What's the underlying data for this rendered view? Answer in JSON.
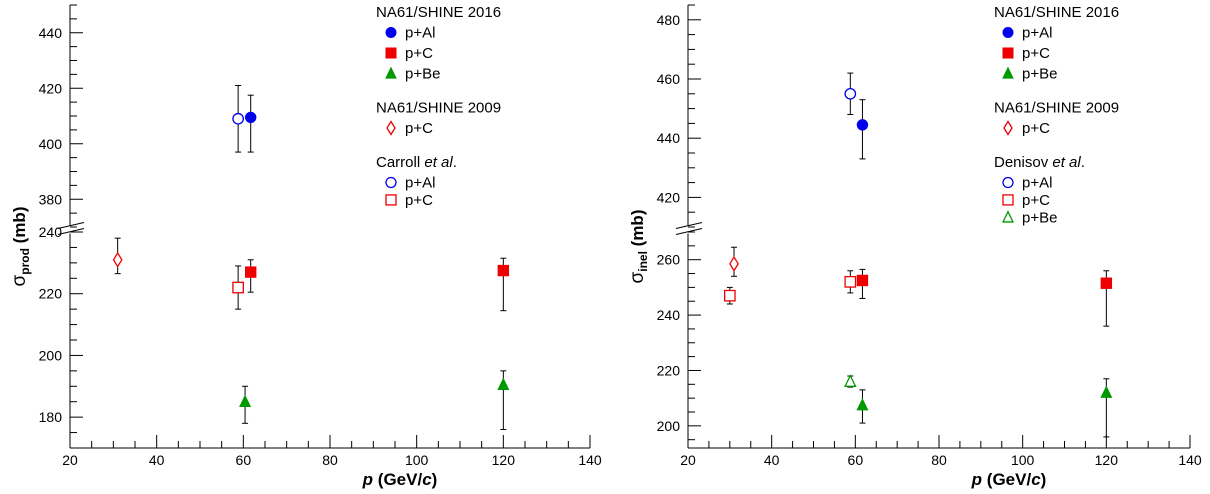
{
  "chart_data": [
    {
      "type": "scatter",
      "title": "",
      "xlabel": "p (GeV/c)",
      "ylabel": "σprod (mb)",
      "xlim": [
        20,
        140
      ],
      "y_broken_axis": true,
      "y_segments": [
        {
          "range": [
            170,
            240
          ],
          "ticks": [
            180,
            200,
            220,
            240
          ]
        },
        {
          "range": [
            370,
            450
          ],
          "ticks": [
            380,
            400,
            420,
            440
          ]
        }
      ],
      "x_ticks": [
        20,
        40,
        60,
        80,
        100,
        120,
        140
      ],
      "legend": [
        {
          "group": "NA61/SHINE 2016",
          "entries": [
            {
              "label": "p+Al",
              "marker": "circle",
              "filled": true,
              "color": "#0000ee"
            },
            {
              "label": "p+C",
              "marker": "square",
              "filled": true,
              "color": "#ee0000"
            },
            {
              "label": "p+Be",
              "marker": "triangle",
              "filled": true,
              "color": "#009900"
            }
          ]
        },
        {
          "group": "NA61/SHINE 2009",
          "entries": [
            {
              "label": "p+C",
              "marker": "diamond",
              "filled": false,
              "color": "#ee0000"
            }
          ]
        },
        {
          "group": "Carroll",
          "group_suffix": "et al",
          "group_end": ".",
          "entries": [
            {
              "label": "p+Al",
              "marker": "circle",
              "filled": false,
              "color": "#0000ee"
            },
            {
              "label": "p+C",
              "marker": "square",
              "filled": false,
              "color": "#ee0000"
            }
          ]
        }
      ],
      "series": [
        {
          "name": "NA61/SHINE 2016 p+Al",
          "marker": "circle",
          "filled": true,
          "color": "#0000ee",
          "points": [
            {
              "x": 61.7,
              "y": 409.5,
              "err_up": 8,
              "err_down": 12.5
            }
          ]
        },
        {
          "name": "NA61/SHINE 2016 p+C",
          "marker": "square",
          "filled": true,
          "color": "#ee0000",
          "points": [
            {
              "x": 61.7,
              "y": 227,
              "err_up": 4,
              "err_down": 6.5
            },
            {
              "x": 120,
              "y": 227.5,
              "err_up": 4,
              "err_down": 13
            }
          ]
        },
        {
          "name": "NA61/SHINE 2016 p+Be",
          "marker": "triangle",
          "filled": true,
          "color": "#009900",
          "points": [
            {
              "x": 60.4,
              "y": 185,
              "err_up": 5,
              "err_down": 7
            },
            {
              "x": 120,
              "y": 190.5,
              "err_up": 4.5,
              "err_down": 14.5
            }
          ]
        },
        {
          "name": "NA61/SHINE 2009 p+C",
          "marker": "diamond",
          "filled": false,
          "color": "#ee0000",
          "points": [
            {
              "x": 31,
              "y": 231,
              "err_up": 7,
              "err_down": 4.5
            }
          ]
        },
        {
          "name": "Carroll et al. p+Al",
          "marker": "circle",
          "filled": false,
          "color": "#0000ee",
          "points": [
            {
              "x": 58.8,
              "y": 409,
              "err_up": 12,
              "err_down": 12
            }
          ]
        },
        {
          "name": "Carroll et al. p+C",
          "marker": "square",
          "filled": false,
          "color": "#ee0000",
          "points": [
            {
              "x": 58.8,
              "y": 222,
              "err_up": 7,
              "err_down": 7
            }
          ]
        }
      ]
    },
    {
      "type": "scatter",
      "title": "",
      "xlabel": "p (GeV/c)",
      "ylabel": "σinel (mb)",
      "xlim": [
        20,
        140
      ],
      "y_broken_axis": true,
      "y_segments": [
        {
          "range": [
            192,
            270
          ],
          "ticks": [
            200,
            220,
            240,
            260
          ]
        },
        {
          "range": [
            410,
            485
          ],
          "ticks": [
            420,
            440,
            460,
            480
          ]
        }
      ],
      "x_ticks": [
        20,
        40,
        60,
        80,
        100,
        120,
        140
      ],
      "legend": [
        {
          "group": "NA61/SHINE 2016",
          "entries": [
            {
              "label": "p+Al",
              "marker": "circle",
              "filled": true,
              "color": "#0000ee"
            },
            {
              "label": "p+C",
              "marker": "square",
              "filled": true,
              "color": "#ee0000"
            },
            {
              "label": "p+Be",
              "marker": "triangle",
              "filled": true,
              "color": "#009900"
            }
          ]
        },
        {
          "group": "NA61/SHINE 2009",
          "entries": [
            {
              "label": "p+C",
              "marker": "diamond",
              "filled": false,
              "color": "#ee0000"
            }
          ]
        },
        {
          "group": "Denisov",
          "group_suffix": "et al",
          "group_end": ".",
          "entries": [
            {
              "label": "p+Al",
              "marker": "circle",
              "filled": false,
              "color": "#0000ee"
            },
            {
              "label": "p+C",
              "marker": "square",
              "filled": false,
              "color": "#ee0000"
            },
            {
              "label": "p+Be",
              "marker": "triangle",
              "filled": false,
              "color": "#009900"
            }
          ]
        }
      ],
      "series": [
        {
          "name": "NA61/SHINE 2016 p+Al",
          "marker": "circle",
          "filled": true,
          "color": "#0000ee",
          "points": [
            {
              "x": 61.7,
              "y": 444.5,
              "err_up": 8.5,
              "err_down": 11.5
            }
          ]
        },
        {
          "name": "NA61/SHINE 2016 p+C",
          "marker": "square",
          "filled": true,
          "color": "#ee0000",
          "points": [
            {
              "x": 61.7,
              "y": 252.5,
              "err_up": 4,
              "err_down": 6.5
            },
            {
              "x": 120,
              "y": 251.5,
              "err_up": 4.5,
              "err_down": 15.5
            }
          ]
        },
        {
          "name": "NA61/SHINE 2016 p+Be",
          "marker": "triangle",
          "filled": true,
          "color": "#009900",
          "points": [
            {
              "x": 61.7,
              "y": 207.5,
              "err_up": 5.5,
              "err_down": 6.5
            },
            {
              "x": 120,
              "y": 212,
              "err_up": 5,
              "err_down": 16
            }
          ]
        },
        {
          "name": "NA61/SHINE 2009 p+C",
          "marker": "diamond",
          "filled": false,
          "color": "#ee0000",
          "points": [
            {
              "x": 31,
              "y": 258.5,
              "err_up": 6,
              "err_down": 4.5
            }
          ]
        },
        {
          "name": "Denisov et al. p+Al",
          "marker": "circle",
          "filled": false,
          "color": "#0000ee",
          "points": [
            {
              "x": 58.8,
              "y": 455,
              "err_up": 7,
              "err_down": 7
            }
          ]
        },
        {
          "name": "Denisov et al. p+C",
          "marker": "square",
          "filled": false,
          "color": "#ee0000",
          "points": [
            {
              "x": 30,
              "y": 247,
              "err_up": 3,
              "err_down": 3
            },
            {
              "x": 58.8,
              "y": 252,
              "err_up": 4,
              "err_down": 4
            }
          ]
        },
        {
          "name": "Denisov et al. p+Be",
          "marker": "triangle",
          "filled": false,
          "color": "#009900",
          "points": [
            {
              "x": 58.8,
              "y": 216,
              "err_up": 2,
              "err_down": 2
            }
          ]
        }
      ]
    }
  ]
}
